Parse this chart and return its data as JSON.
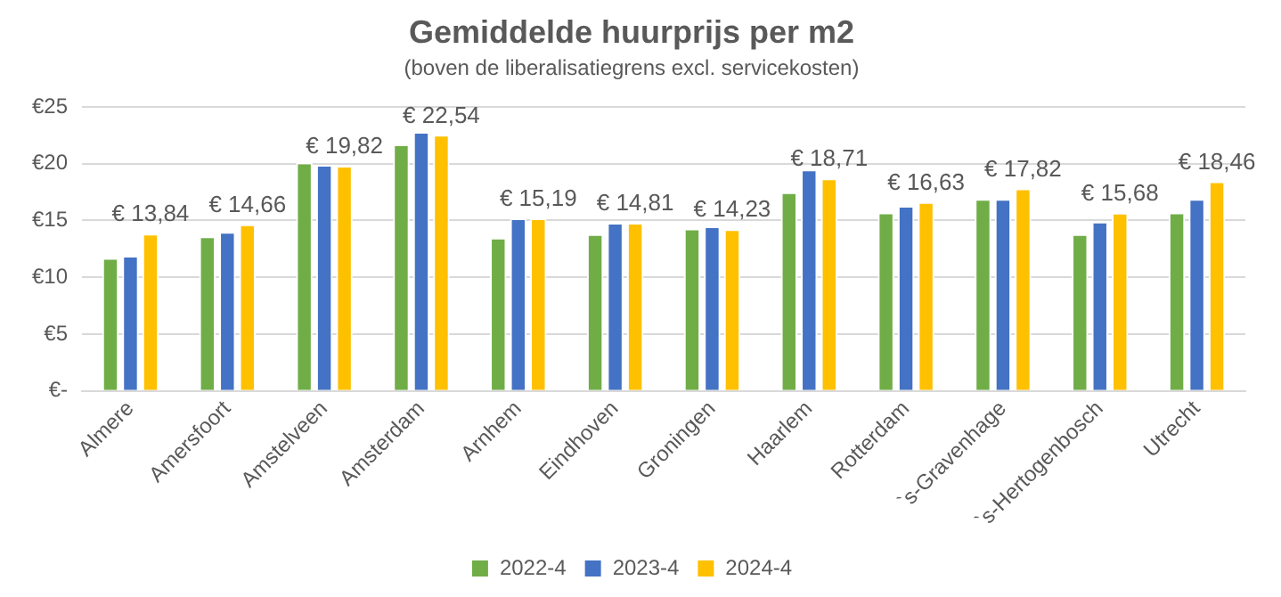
{
  "chart_data": {
    "type": "bar",
    "title": "Gemiddelde huurprijs per m2",
    "subtitle": "(boven de liberalisatiegrens excl. servicekosten)",
    "categories": [
      "Almere",
      "Amersfoort",
      "Amstelveen",
      "Amsterdam",
      "Arnhem",
      "Eindhoven",
      "Groningen",
      "Haarlem",
      "Rotterdam",
      "`s-Gravenhage",
      "`s-Hertogenbosch",
      "Utrecht"
    ],
    "series": [
      {
        "name": "2022-4",
        "color": "#70ad47",
        "values": [
          11.7,
          13.6,
          20.1,
          21.7,
          13.5,
          13.8,
          14.3,
          17.5,
          15.7,
          16.9,
          13.8,
          15.7
        ]
      },
      {
        "name": "2023-4",
        "color": "#4472c4",
        "values": [
          11.9,
          14.0,
          19.9,
          22.8,
          15.2,
          14.8,
          14.5,
          19.5,
          16.3,
          16.9,
          14.9,
          16.9
        ]
      },
      {
        "name": "2024-4",
        "color": "#ffc000",
        "values": [
          13.84,
          14.66,
          19.82,
          22.54,
          15.19,
          14.81,
          14.23,
          18.71,
          16.63,
          17.82,
          15.68,
          18.46
        ],
        "value_labels": [
          "€ 13,84",
          "€ 14,66",
          "€ 19,82",
          "€ 22,54",
          "€ 15,19",
          "€ 14,81",
          "€ 14,23",
          "€ 18,71",
          "€ 16,63",
          "€ 17,82",
          "€ 15,68",
          "€ 18,46"
        ]
      }
    ],
    "ylim": [
      0,
      25
    ],
    "yticks": [
      {
        "value": 0,
        "label": "€-"
      },
      {
        "value": 5,
        "label": "€5"
      },
      {
        "value": 10,
        "label": "€10"
      },
      {
        "value": 15,
        "label": "€15"
      },
      {
        "value": 20,
        "label": "€20"
      },
      {
        "value": 25,
        "label": "€25"
      }
    ],
    "grid": "y",
    "legend": "bottom"
  }
}
